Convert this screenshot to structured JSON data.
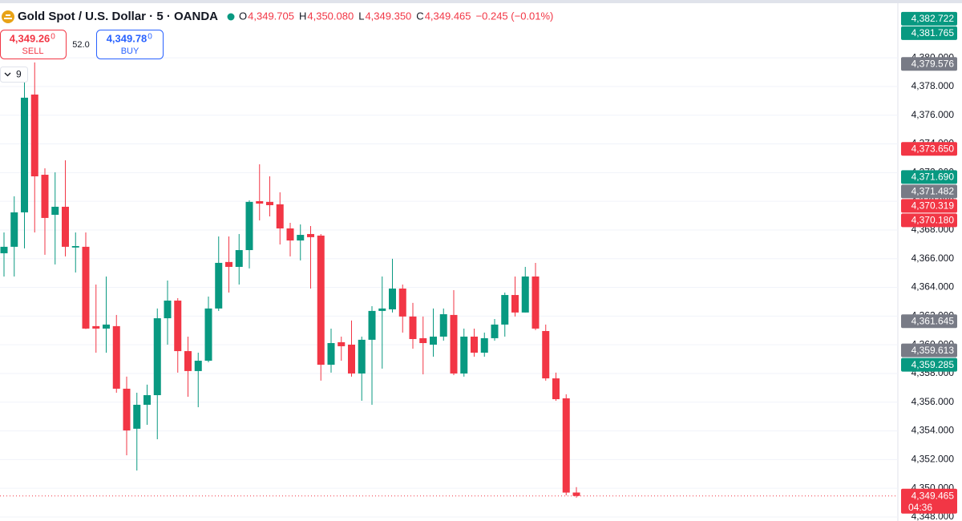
{
  "header": {
    "title": "Gold Spot / U.S. Dollar · 5 · OANDA",
    "ohlc": [
      {
        "key": "O",
        "value": "4,349.705"
      },
      {
        "key": "H",
        "value": "4,350.080"
      },
      {
        "key": "L",
        "value": "4,349.350"
      },
      {
        "key": "C",
        "value": "4,349.465"
      }
    ],
    "change": "−0.245 (−0.01%)"
  },
  "trade": {
    "sell": {
      "price": "4,349.26",
      "pip": "0",
      "label": "SELL"
    },
    "spread": "52.0",
    "buy": {
      "price": "4,349.78",
      "pip": "0",
      "label": "BUY"
    }
  },
  "indicators": {
    "count": "9"
  },
  "chart_data": {
    "type": "candlestick",
    "up_color": "#089981",
    "down_color": "#f23645",
    "grid": true,
    "ylim": [
      4347.72,
      4383.75
    ],
    "yticks": [
      {
        "value": 4348,
        "label": "4,348.000"
      },
      {
        "value": 4350,
        "label": "4,350.000"
      },
      {
        "value": 4352,
        "label": "4,352.000"
      },
      {
        "value": 4354,
        "label": "4,354.000"
      },
      {
        "value": 4356,
        "label": "4,356.000"
      },
      {
        "value": 4358,
        "label": "4,358.000"
      },
      {
        "value": 4360,
        "label": "4,360.000"
      },
      {
        "value": 4362,
        "label": "4,362.000"
      },
      {
        "value": 4364,
        "label": "4,364.000"
      },
      {
        "value": 4366,
        "label": "4,366.000"
      },
      {
        "value": 4368,
        "label": "4,368.000"
      },
      {
        "value": 4370,
        "label": "4,370.000"
      },
      {
        "value": 4372,
        "label": "4,372.000"
      },
      {
        "value": 4374,
        "label": "4,374.000"
      },
      {
        "value": 4376,
        "label": "4,376.000"
      },
      {
        "value": 4378,
        "label": "4,378.000"
      },
      {
        "value": 4380,
        "label": "4,380.000"
      }
    ],
    "open": [
      4366.38,
      4366.83,
      4369.23,
      4377.44,
      4371.85,
      4369.06,
      4369.62,
      4366.78,
      4366.83,
      4361.3,
      4361.13,
      4361.3,
      4356.94,
      4354.15,
      4355.82,
      4356.49,
      4361.85,
      4363.08,
      4359.56,
      4358.17,
      4358.89,
      4362.53,
      4365.77,
      4365.43,
      4366.6,
      4370.01,
      4369.96,
      4369.79,
      4368.11,
      4367.27,
      4367.72,
      4367.61,
      4358.61,
      4360.18,
      4360.01,
      4358.0,
      4360.35,
      4362.36,
      4362.47,
      4363.92,
      4361.97,
      4360.46,
      4360.01,
      4360.57,
      4362.08,
      4358.0,
      4360.57,
      4359.45,
      4360.46,
      4361.41,
      4363.47,
      4362.25,
      4364.76,
      4360.96,
      4357.66,
      4356.27,
      4349.705
    ],
    "high": [
      4367.83,
      4370.35,
      4378.45,
      4379.68,
      4372.3,
      4372.02,
      4372.86,
      4367.83,
      4367.83,
      4364.2,
      4364.76,
      4362.08,
      4357.78,
      4356.66,
      4357.22,
      4362.53,
      4364.48,
      4363.25,
      4360.57,
      4359.45,
      4363.36,
      4367.55,
      4367.55,
      4367.72,
      4370.07,
      4372.58,
      4371.74,
      4370.63,
      4368.5,
      4368.39,
      4368.28,
      4367.72,
      4361.13,
      4360.57,
      4361.69,
      4360.57,
      4362.69,
      4364.76,
      4365.99,
      4364.2,
      4362.92,
      4361.97,
      4362.53,
      4362.53,
      4363.81,
      4361.13,
      4361.13,
      4360.85,
      4361.8,
      4363.64,
      4364.76,
      4365.43,
      4365.71,
      4361.41,
      4358.06,
      4356.55,
      4350.08
    ],
    "low": [
      4364.76,
      4364.76,
      4366.72,
      4367.83,
      4366.27,
      4365.6,
      4366.16,
      4365.04,
      4361.1,
      4359.45,
      4359.45,
      4356.66,
      4352.3,
      4351.24,
      4354.42,
      4353.42,
      4360.01,
      4358.06,
      4356.38,
      4355.65,
      4358.78,
      4362.36,
      4363.64,
      4364.2,
      4365.32,
      4368.67,
      4368.95,
      4366.99,
      4366.16,
      4365.88,
      4363.92,
      4357.5,
      4358.06,
      4358.89,
      4357.78,
      4356.1,
      4355.82,
      4358.34,
      4362.25,
      4360.85,
      4359.73,
      4357.94,
      4359.17,
      4360.29,
      4357.89,
      4357.78,
      4359.17,
      4359.17,
      4360.29,
      4360.57,
      4361.97,
      4362.25,
      4361.02,
      4357.5,
      4356.1,
      4349.51,
      4349.35
    ],
    "close": [
      4366.83,
      4369.23,
      4377.22,
      4371.74,
      4368.84,
      4369.62,
      4366.83,
      4366.88,
      4361.13,
      4361.13,
      4361.41,
      4356.94,
      4354.03,
      4355.82,
      4356.49,
      4361.85,
      4363.08,
      4359.56,
      4358.17,
      4358.89,
      4362.53,
      4365.71,
      4365.43,
      4366.6,
      4369.96,
      4369.84,
      4369.73,
      4368.11,
      4367.27,
      4367.66,
      4367.5,
      4358.61,
      4360.12,
      4359.9,
      4358.0,
      4360.35,
      4362.36,
      4362.53,
      4363.92,
      4361.97,
      4360.4,
      4360.12,
      4360.57,
      4362.13,
      4358.0,
      4360.57,
      4359.45,
      4360.46,
      4361.41,
      4363.47,
      4362.25,
      4364.76,
      4361.13,
      4357.66,
      4356.21,
      4349.7,
      4349.465
    ],
    "price_badges": [
      {
        "value": 4382.722,
        "label": "4,382.722",
        "color": "#089981"
      },
      {
        "value": 4381.765,
        "label": "4,381.765",
        "color": "#089981"
      },
      {
        "value": 4379.576,
        "label": "4,379.576",
        "color": "#787b86"
      },
      {
        "value": 4373.65,
        "label": "4,373.650",
        "color": "#f23645"
      },
      {
        "value": 4371.69,
        "label": "4,371.690",
        "color": "#089981"
      },
      {
        "value": 4371.482,
        "label": "4,371.482",
        "color": "#787b86"
      },
      {
        "value": 4370.319,
        "label": "4,370.319",
        "color": "#f23645"
      },
      {
        "value": 4370.18,
        "label": "4,370.180",
        "color": "#f23645"
      },
      {
        "value": 4361.645,
        "label": "4,361.645",
        "color": "#787b86"
      },
      {
        "value": 4359.613,
        "label": "4,359.613",
        "color": "#787b86"
      },
      {
        "value": 4359.285,
        "label": "4,359.285",
        "color": "#089981"
      }
    ],
    "current_price": {
      "value": 4349.465,
      "label": "4,349.465",
      "countdown": "04:36",
      "color": "#f23645"
    }
  }
}
